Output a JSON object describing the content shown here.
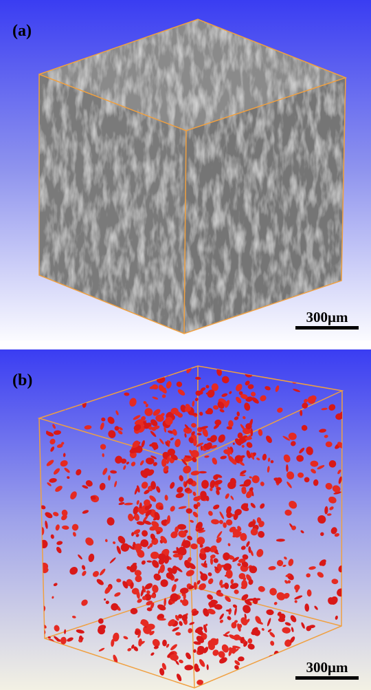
{
  "panels": [
    {
      "label": "(a)",
      "scale_bar": "300μm"
    },
    {
      "label": "(b)",
      "scale_bar": "300μm"
    }
  ]
}
